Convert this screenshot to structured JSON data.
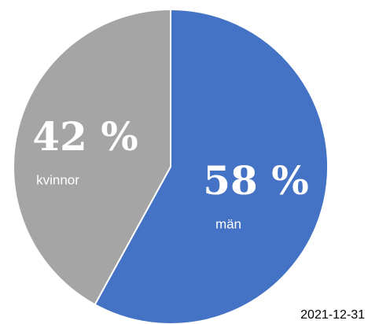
{
  "chart_data": {
    "type": "pie",
    "categories": [
      "män",
      "kvinnor"
    ],
    "values": [
      58,
      42
    ],
    "value_labels": [
      "58 %",
      "42 %"
    ],
    "colors": [
      "#4472c4",
      "#a5a5a5"
    ],
    "date": "2021-12-31"
  }
}
